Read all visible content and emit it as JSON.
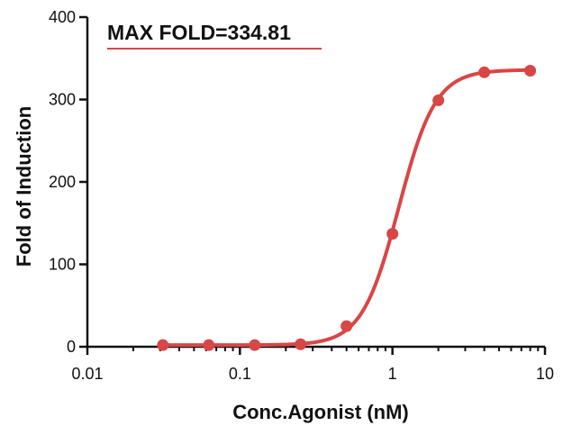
{
  "chart_data": {
    "type": "scatter",
    "title": "",
    "xlabel": "Conc.Agonist (nM)",
    "ylabel": "Fold of Induction",
    "x_scale": "log",
    "xlim": [
      0.01,
      10
    ],
    "ylim": [
      0,
      400
    ],
    "x_ticks": [
      {
        "value": 0.01,
        "label": "0.01"
      },
      {
        "value": 0.1,
        "label": "0.1"
      },
      {
        "value": 1,
        "label": "1"
      },
      {
        "value": 10,
        "label": "10"
      }
    ],
    "y_ticks": [
      {
        "value": 0,
        "label": "0"
      },
      {
        "value": 100,
        "label": "100"
      },
      {
        "value": 200,
        "label": "200"
      },
      {
        "value": 300,
        "label": "300"
      },
      {
        "value": 400,
        "label": "400"
      }
    ],
    "annotation": "MAX FOLD=334.81",
    "grid": false,
    "legend": "none",
    "series": [
      {
        "color": "#d94646",
        "points": [
          {
            "x": 0.03125,
            "y": 2
          },
          {
            "x": 0.0625,
            "y": 2
          },
          {
            "x": 0.125,
            "y": 2
          },
          {
            "x": 0.25,
            "y": 3
          },
          {
            "x": 0.5,
            "y": 25
          },
          {
            "x": 1,
            "y": 137
          },
          {
            "x": 2,
            "y": 299
          },
          {
            "x": 4,
            "y": 333
          },
          {
            "x": 8,
            "y": 335
          }
        ]
      }
    ],
    "fit_curve": {
      "model": "four-parameter logistic",
      "bottom": 2,
      "top": 336,
      "ec50": 1.1,
      "hill": 3.6,
      "x_range": [
        0.03125,
        8
      ]
    }
  }
}
